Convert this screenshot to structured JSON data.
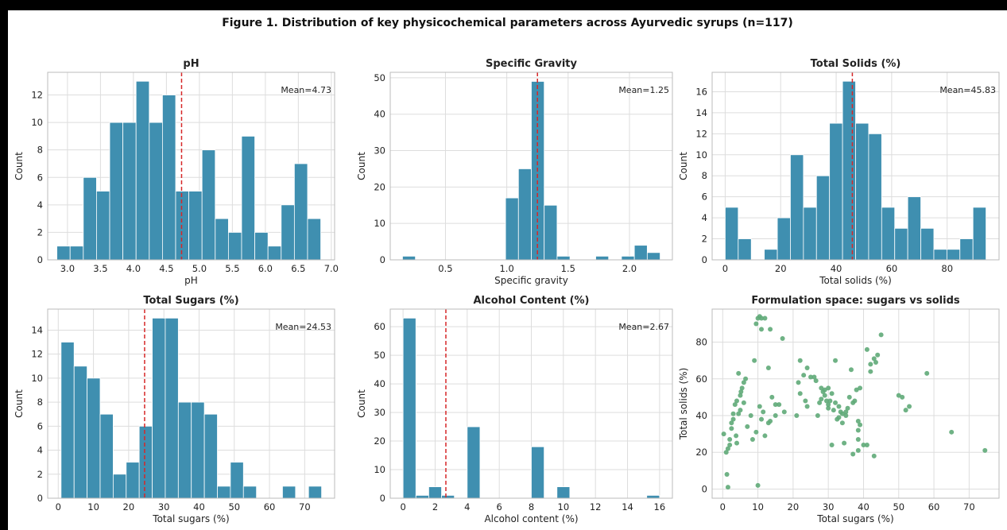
{
  "figure_title": "Figure 1. Distribution of key physicochemical parameters across Ayurvedic syrups (n=117)",
  "colors": {
    "bar": "#3f8fb0",
    "bar_edge": "#ffffff",
    "mean_line": "#d62728",
    "scatter": "#5faa78",
    "grid": "#dddddd"
  },
  "chart_data": [
    {
      "type": "bar",
      "title": "pH",
      "xlabel": "pH",
      "ylabel": "Count",
      "bin_start": 2.84,
      "bin_width": 0.2,
      "counts": [
        1,
        1,
        6,
        5,
        10,
        10,
        13,
        10,
        12,
        5,
        5,
        8,
        3,
        2,
        9,
        2,
        1,
        4,
        7,
        3
      ],
      "xlim": [
        2.7,
        7.05
      ],
      "ylim": [
        0,
        13.65
      ],
      "xticks": [
        3.0,
        3.5,
        4.0,
        4.5,
        5.0,
        5.5,
        6.0,
        6.5,
        7.0
      ],
      "xtick_labels": [
        "3.0",
        "3.5",
        "4.0",
        "4.5",
        "5.0",
        "5.5",
        "6.0",
        "6.5",
        "7.0"
      ],
      "yticks": [
        0,
        2,
        4,
        6,
        8,
        10,
        12
      ],
      "ytick_labels": [
        "0",
        "2",
        "4",
        "6",
        "8",
        "10",
        "12"
      ],
      "mean": 4.73,
      "mean_label": "Mean=4.73"
    },
    {
      "type": "bar",
      "title": "Specific Gravity",
      "xlabel": "Specific gravity",
      "ylabel": "Count",
      "bin_start": 0.15,
      "bin_width": 0.105,
      "counts": [
        1,
        0,
        0,
        0,
        0,
        0,
        0,
        0,
        17,
        25,
        49,
        15,
        1,
        0,
        0,
        1,
        0,
        1,
        4,
        2
      ],
      "xlim": [
        0.05,
        2.35
      ],
      "ylim": [
        0,
        51.5
      ],
      "xticks": [
        0.5,
        1.0,
        1.5,
        2.0
      ],
      "xtick_labels": [
        "0.5",
        "1.0",
        "1.5",
        "2.0"
      ],
      "yticks": [
        0,
        10,
        20,
        30,
        40,
        50
      ],
      "ytick_labels": [
        "0",
        "10",
        "20",
        "30",
        "40",
        "50"
      ],
      "mean": 1.25,
      "mean_label": "Mean=1.25"
    },
    {
      "type": "bar",
      "title": "Total Solids (%)",
      "xlabel": "Total solids (%)",
      "ylabel": "Count",
      "bin_start": 0,
      "bin_width": 4.7,
      "counts": [
        5,
        2,
        0,
        1,
        4,
        10,
        5,
        8,
        13,
        17,
        13,
        12,
        5,
        3,
        6,
        3,
        1,
        1,
        2,
        5
      ],
      "xlim": [
        -4.7,
        98.7
      ],
      "ylim": [
        0,
        17.85
      ],
      "xticks": [
        0,
        20,
        40,
        60,
        80
      ],
      "xtick_labels": [
        "0",
        "20",
        "40",
        "60",
        "80"
      ],
      "yticks": [
        0,
        2,
        4,
        6,
        8,
        10,
        12,
        14,
        16
      ],
      "ytick_labels": [
        "0",
        "2",
        "4",
        "6",
        "8",
        "10",
        "12",
        "14",
        "16"
      ],
      "mean": 45.83,
      "mean_label": "Mean=45.83"
    },
    {
      "type": "bar",
      "title": "Total Sugars (%)",
      "xlabel": "Total sugars (%)",
      "ylabel": "Count",
      "bin_start": 0.8,
      "bin_width": 3.7,
      "counts": [
        13,
        11,
        10,
        7,
        2,
        3,
        6,
        15,
        15,
        8,
        8,
        7,
        1,
        3,
        1,
        0,
        0,
        1,
        0,
        1
      ],
      "xlim": [
        -3.0,
        78.5
      ],
      "ylim": [
        0,
        15.75
      ],
      "xticks": [
        0,
        10,
        20,
        30,
        40,
        50,
        60,
        70
      ],
      "xtick_labels": [
        "0",
        "10",
        "20",
        "30",
        "40",
        "50",
        "60",
        "70"
      ],
      "yticks": [
        0,
        2,
        4,
        6,
        8,
        10,
        12,
        14
      ],
      "ytick_labels": [
        "0",
        "2",
        "4",
        "6",
        "8",
        "10",
        "12",
        "14"
      ],
      "mean": 24.53,
      "mean_label": "Mean=24.53"
    },
    {
      "type": "bar",
      "title": "Alcohol Content (%)",
      "xlabel": "Alcohol content (%)",
      "ylabel": "Count",
      "bin_start": 0,
      "bin_width": 0.8,
      "counts": [
        63,
        1,
        4,
        1,
        0,
        25,
        0,
        0,
        0,
        0,
        18,
        0,
        4,
        0,
        0,
        0,
        0,
        0,
        0,
        1
      ],
      "xlim": [
        -0.8,
        16.8
      ],
      "ylim": [
        0,
        66.15
      ],
      "xticks": [
        0,
        2,
        4,
        6,
        8,
        10,
        12,
        14,
        16
      ],
      "xtick_labels": [
        "0",
        "2",
        "4",
        "6",
        "8",
        "10",
        "12",
        "14",
        "16"
      ],
      "yticks": [
        0,
        10,
        20,
        30,
        40,
        50,
        60
      ],
      "ytick_labels": [
        "0",
        "10",
        "20",
        "30",
        "40",
        "50",
        "60"
      ],
      "mean": 2.67,
      "mean_label": "Mean=2.67"
    },
    {
      "type": "scatter",
      "title": "Formulation space: sugars vs solids",
      "xlabel": "Total sugars (%)",
      "ylabel": "Total solids (%)",
      "xlim": [
        -3.0,
        78.5
      ],
      "ylim": [
        -5,
        98
      ],
      "xticks": [
        0,
        10,
        20,
        30,
        40,
        50,
        60,
        70
      ],
      "xtick_labels": [
        "0",
        "10",
        "20",
        "30",
        "40",
        "50",
        "60",
        "70"
      ],
      "yticks": [
        0,
        20,
        40,
        60,
        80
      ],
      "ytick_labels": [
        "0",
        "20",
        "40",
        "60",
        "80"
      ],
      "points": [
        [
          0.3,
          30
        ],
        [
          1,
          20
        ],
        [
          1.2,
          8
        ],
        [
          1.5,
          1
        ],
        [
          1.5,
          22
        ],
        [
          2,
          24
        ],
        [
          2,
          27
        ],
        [
          2.5,
          36
        ],
        [
          2.5,
          33
        ],
        [
          3,
          41
        ],
        [
          3,
          38
        ],
        [
          3.5,
          46
        ],
        [
          3.8,
          29
        ],
        [
          4,
          48
        ],
        [
          4,
          25
        ],
        [
          4.5,
          63
        ],
        [
          4.5,
          41
        ],
        [
          5,
          51
        ],
        [
          5,
          43
        ],
        [
          5.2,
          53
        ],
        [
          5.5,
          55
        ],
        [
          6,
          58
        ],
        [
          6,
          47
        ],
        [
          6.5,
          60
        ],
        [
          7,
          34
        ],
        [
          8,
          40
        ],
        [
          8.5,
          27
        ],
        [
          9,
          70
        ],
        [
          9.5,
          90
        ],
        [
          9.5,
          31
        ],
        [
          10,
          93
        ],
        [
          10,
          2
        ],
        [
          10.5,
          94
        ],
        [
          10.5,
          45
        ],
        [
          11,
          93
        ],
        [
          11,
          38
        ],
        [
          11,
          87
        ],
        [
          11.5,
          42
        ],
        [
          12,
          29
        ],
        [
          12,
          93
        ],
        [
          13,
          36
        ],
        [
          13,
          66
        ],
        [
          13.5,
          87
        ],
        [
          13.5,
          37
        ],
        [
          14,
          50
        ],
        [
          15,
          46
        ],
        [
          15,
          40
        ],
        [
          16,
          46
        ],
        [
          17,
          82
        ],
        [
          17.5,
          42
        ],
        [
          21,
          40
        ],
        [
          21.5,
          58
        ],
        [
          22,
          70
        ],
        [
          22,
          52
        ],
        [
          23,
          62
        ],
        [
          23.5,
          48
        ],
        [
          24,
          66
        ],
        [
          24,
          45
        ],
        [
          25,
          61
        ],
        [
          26,
          61
        ],
        [
          26.5,
          59
        ],
        [
          27,
          40
        ],
        [
          27.5,
          47
        ],
        [
          28,
          55
        ],
        [
          28,
          49
        ],
        [
          28.5,
          53
        ],
        [
          29,
          54
        ],
        [
          29,
          51
        ],
        [
          29.5,
          48
        ],
        [
          30,
          55
        ],
        [
          30,
          46
        ],
        [
          30,
          44
        ],
        [
          30.5,
          48
        ],
        [
          31,
          52
        ],
        [
          31,
          24
        ],
        [
          31.5,
          43
        ],
        [
          32,
          70
        ],
        [
          32,
          47
        ],
        [
          32.5,
          38
        ],
        [
          33,
          45
        ],
        [
          33,
          39
        ],
        [
          33.5,
          42
        ],
        [
          34,
          41
        ],
        [
          34,
          36
        ],
        [
          34.5,
          25
        ],
        [
          35,
          42
        ],
        [
          35,
          40
        ],
        [
          35.5,
          44
        ],
        [
          36,
          50
        ],
        [
          36.5,
          65
        ],
        [
          37,
          47
        ],
        [
          37,
          19
        ],
        [
          37.5,
          48
        ],
        [
          38,
          54
        ],
        [
          38.5,
          37
        ],
        [
          38.5,
          32
        ],
        [
          38.5,
          27
        ],
        [
          38.5,
          21
        ],
        [
          39,
          55
        ],
        [
          39,
          35
        ],
        [
          40,
          24
        ],
        [
          41,
          76
        ],
        [
          41,
          24
        ],
        [
          42,
          64
        ],
        [
          42,
          68
        ],
        [
          43,
          18
        ],
        [
          43,
          71
        ],
        [
          43.5,
          69
        ],
        [
          44,
          73
        ],
        [
          45,
          84
        ],
        [
          50,
          51
        ],
        [
          51,
          50
        ],
        [
          52,
          43
        ],
        [
          53,
          45
        ],
        [
          65,
          31
        ],
        [
          74.5,
          21
        ],
        [
          58,
          63
        ]
      ]
    }
  ]
}
